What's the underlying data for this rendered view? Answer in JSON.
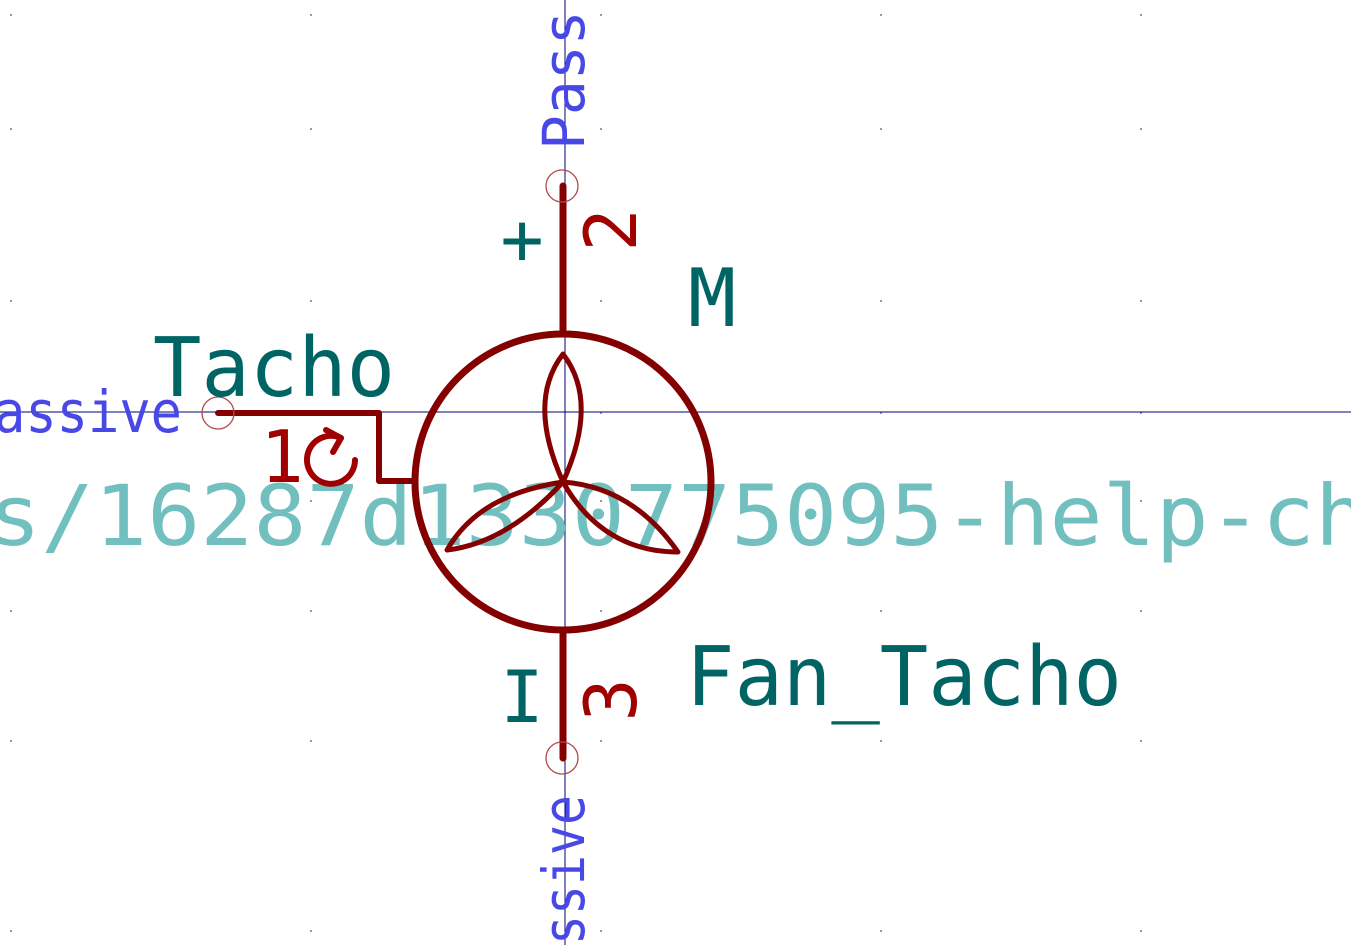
{
  "symbol": {
    "reference": "M",
    "value": "Fan_Tacho",
    "datasheet_fragment": "s/16287d1330775095-help-ch"
  },
  "pins": [
    {
      "number": "2",
      "name": "+",
      "type_label": "Pass"
    },
    {
      "number": "3",
      "name": "I",
      "type_label": "ssive"
    },
    {
      "number": "1",
      "name": "Tacho",
      "type_label": "assive"
    }
  ],
  "colors": {
    "body": "#840000",
    "pin_number": "#a00000",
    "pin_name": "#006464",
    "field": "#006464",
    "datasheet": "#72bfbf",
    "pin_type": "#4848e6",
    "axis": "#00007a",
    "grid": "#9a9a9a"
  }
}
